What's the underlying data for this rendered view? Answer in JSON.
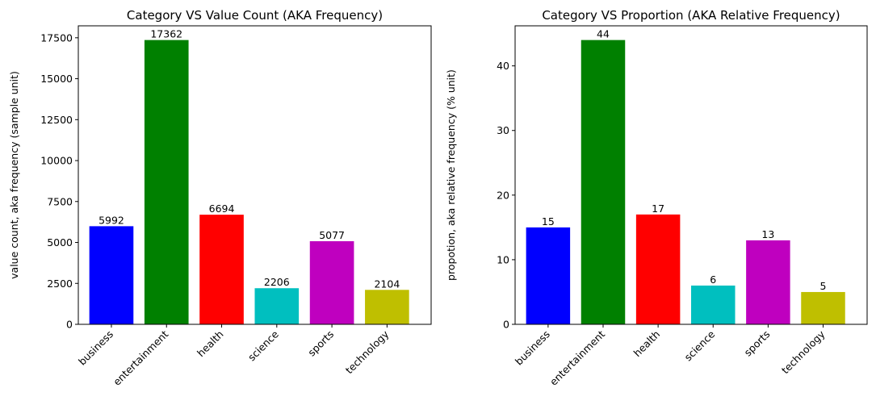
{
  "chart_data": [
    {
      "type": "bar",
      "title": "Category VS Value Count (AKA Frequency)",
      "xlabel": "",
      "ylabel": "value count, aka frequency (sample unit)",
      "categories": [
        "business",
        "entertainment",
        "health",
        "science",
        "sports",
        "technology"
      ],
      "values": [
        5992,
        17362,
        6694,
        2206,
        5077,
        2104
      ],
      "data_labels": [
        "5992",
        "17362",
        "6694",
        "2206",
        "5077",
        "2104"
      ],
      "colors": [
        "#0000ff",
        "#008000",
        "#ff0000",
        "#00bfbf",
        "#bf00bf",
        "#bfbf00"
      ],
      "ylim": [
        0,
        18230
      ],
      "yticks": [
        0,
        2500,
        5000,
        7500,
        10000,
        12500,
        15000,
        17500
      ],
      "ytick_labels": [
        "0",
        "2500",
        "5000",
        "7500",
        "10000",
        "12500",
        "15000",
        "17500"
      ],
      "xtick_rotation": 45,
      "grid": false,
      "legend": "none"
    },
    {
      "type": "bar",
      "title": "Category VS Proportion (AKA Relative Frequency)",
      "xlabel": "",
      "ylabel": "propotion, aka relative frequency (% unit)",
      "categories": [
        "business",
        "entertainment",
        "health",
        "science",
        "sports",
        "technology"
      ],
      "values": [
        15,
        44,
        17,
        6,
        13,
        5
      ],
      "data_labels": [
        "15",
        "44",
        "17",
        "6",
        "13",
        "5"
      ],
      "colors": [
        "#0000ff",
        "#008000",
        "#ff0000",
        "#00bfbf",
        "#bf00bf",
        "#bfbf00"
      ],
      "ylim": [
        0,
        46.2
      ],
      "yticks": [
        0,
        10,
        20,
        30,
        40
      ],
      "ytick_labels": [
        "0",
        "10",
        "20",
        "30",
        "40"
      ],
      "xtick_rotation": 45,
      "grid": false,
      "legend": "none"
    }
  ]
}
